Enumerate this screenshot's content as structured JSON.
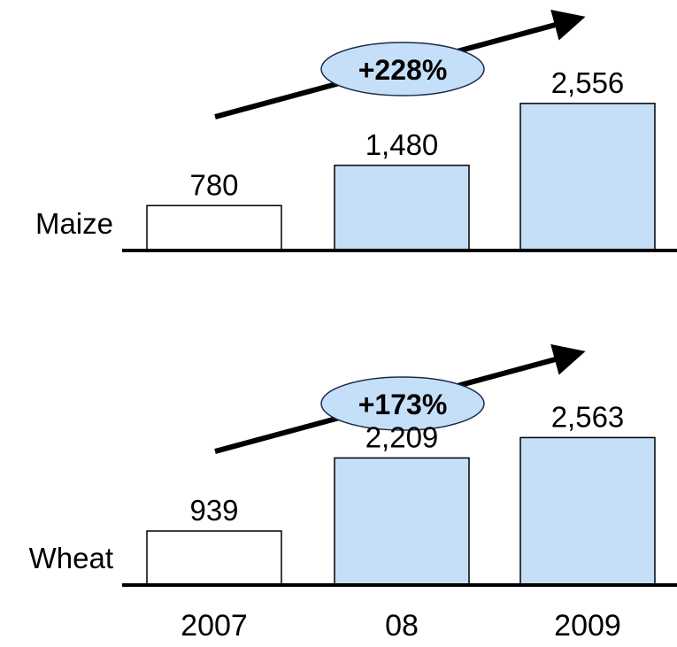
{
  "chart_data": {
    "type": "bar",
    "categories": [
      "2007",
      "08",
      "2009"
    ],
    "colors": [
      "#ffffff",
      "#c6dff8",
      "#c6dff8"
    ],
    "series": [
      {
        "name": "Maize",
        "values": [
          780,
          1480,
          2556
        ],
        "value_labels": [
          "780",
          "1,480",
          "2,556"
        ],
        "annotation": "+228%"
      },
      {
        "name": "Wheat",
        "values": [
          939,
          2209,
          2563
        ],
        "value_labels": [
          "939",
          "2,209",
          "2,563"
        ],
        "annotation": "+173%"
      }
    ]
  }
}
